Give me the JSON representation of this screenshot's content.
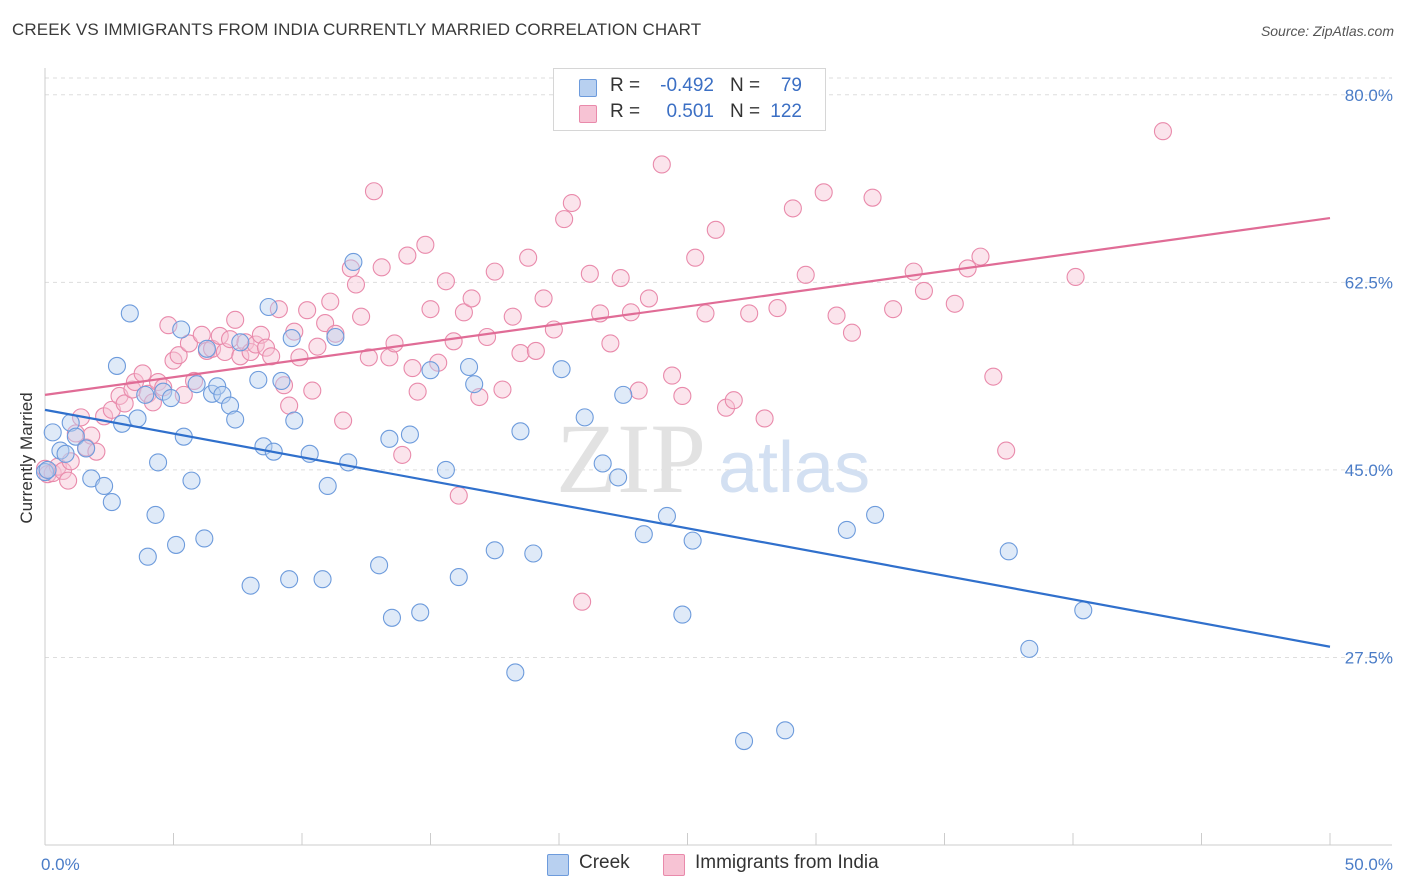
{
  "title": "CREEK VS IMMIGRANTS FROM INDIA CURRENTLY MARRIED CORRELATION CHART",
  "source": "Source: ZipAtlas.com",
  "watermark": {
    "zip": "ZIP",
    "atlas": "atlas"
  },
  "legend": {
    "series": [
      {
        "r_label": "R =",
        "r_value": "-0.492",
        "n_label": "N =",
        "n_value": "79"
      },
      {
        "r_label": "R =",
        "r_value": "0.501",
        "n_label": "N =",
        "n_value": "122"
      }
    ]
  },
  "colors": {
    "creek_fill": "#b8d0f0",
    "creek_stroke": "#6d9bdc",
    "creek_line": "#3070cc",
    "india_fill": "#f7c3d4",
    "india_stroke": "#e98aab",
    "india_line": "#e06c96",
    "tick": "#4a7cc7",
    "grid": "#dddddd"
  },
  "chart_data": {
    "type": "scatter",
    "title": "CREEK VS IMMIGRANTS FROM INDIA CURRENTLY MARRIED CORRELATION CHART",
    "xlabel": "",
    "ylabel": "Currently Married",
    "xlim": [
      0,
      50
    ],
    "ylim": [
      10,
      82.5
    ],
    "x_tick_labels": [
      "0.0%",
      "50.0%"
    ],
    "y_ticks": [
      27.5,
      45.0,
      62.5,
      80.0
    ],
    "y_tick_labels": [
      "27.5%",
      "45.0%",
      "62.5%",
      "80.0%"
    ],
    "grid": "horizontal dashed",
    "legend_position": "top-center",
    "series": [
      {
        "name": "Creek",
        "r": -0.492,
        "n": 79,
        "trend": {
          "x": [
            0,
            50
          ],
          "y": [
            50.6,
            28.5
          ]
        },
        "points": [
          [
            0.0,
            44.8
          ],
          [
            0.3,
            48.5
          ],
          [
            0.6,
            46.8
          ],
          [
            0.8,
            46.5
          ],
          [
            1.0,
            49.4
          ],
          [
            1.2,
            48.1
          ],
          [
            1.6,
            47.0
          ],
          [
            1.8,
            44.2
          ],
          [
            2.3,
            43.5
          ],
          [
            2.6,
            42.0
          ],
          [
            2.8,
            54.7
          ],
          [
            3.0,
            49.3
          ],
          [
            3.3,
            59.6
          ],
          [
            3.6,
            49.8
          ],
          [
            3.9,
            52.0
          ],
          [
            4.0,
            36.9
          ],
          [
            4.3,
            40.8
          ],
          [
            4.4,
            45.7
          ],
          [
            4.6,
            52.3
          ],
          [
            4.9,
            51.7
          ],
          [
            5.1,
            38.0
          ],
          [
            5.3,
            58.1
          ],
          [
            5.4,
            48.1
          ],
          [
            5.7,
            44.0
          ],
          [
            5.9,
            53.0
          ],
          [
            6.2,
            38.6
          ],
          [
            6.3,
            56.3
          ],
          [
            6.5,
            52.1
          ],
          [
            6.7,
            52.8
          ],
          [
            6.9,
            52.0
          ],
          [
            7.2,
            51.0
          ],
          [
            7.4,
            49.7
          ],
          [
            7.6,
            56.9
          ],
          [
            8.0,
            34.2
          ],
          [
            8.3,
            53.4
          ],
          [
            8.5,
            47.2
          ],
          [
            8.7,
            60.2
          ],
          [
            8.9,
            46.7
          ],
          [
            9.2,
            53.3
          ],
          [
            9.5,
            34.8
          ],
          [
            9.6,
            57.3
          ],
          [
            9.7,
            49.6
          ],
          [
            10.3,
            46.5
          ],
          [
            10.8,
            34.8
          ],
          [
            11.0,
            43.5
          ],
          [
            11.3,
            57.4
          ],
          [
            11.8,
            45.7
          ],
          [
            12.0,
            64.4
          ],
          [
            13.0,
            36.1
          ],
          [
            13.4,
            47.9
          ],
          [
            13.5,
            31.2
          ],
          [
            14.2,
            48.3
          ],
          [
            14.6,
            31.7
          ],
          [
            15.0,
            54.3
          ],
          [
            15.6,
            45.0
          ],
          [
            16.1,
            35.0
          ],
          [
            16.5,
            54.6
          ],
          [
            16.7,
            53.0
          ],
          [
            17.5,
            37.5
          ],
          [
            18.3,
            26.1
          ],
          [
            18.5,
            48.6
          ],
          [
            19.0,
            37.2
          ],
          [
            20.1,
            54.4
          ],
          [
            21.0,
            49.9
          ],
          [
            21.7,
            45.6
          ],
          [
            22.3,
            44.3
          ],
          [
            22.5,
            52.0
          ],
          [
            23.3,
            39.0
          ],
          [
            24.2,
            40.7
          ],
          [
            24.8,
            31.5
          ],
          [
            25.2,
            38.4
          ],
          [
            27.2,
            19.7
          ],
          [
            28.8,
            20.7
          ],
          [
            31.2,
            39.4
          ],
          [
            32.3,
            40.8
          ],
          [
            37.5,
            37.4
          ],
          [
            38.3,
            28.3
          ],
          [
            40.4,
            31.9
          ],
          [
            0.1,
            45.0
          ]
        ]
      },
      {
        "name": "Immigrants from India",
        "r": 0.501,
        "n": 122,
        "trend": {
          "x": [
            0,
            50
          ],
          "y": [
            52.0,
            68.5
          ]
        },
        "points": [
          [
            0.0,
            45.1
          ],
          [
            0.1,
            44.6
          ],
          [
            0.3,
            44.7
          ],
          [
            0.5,
            45.3
          ],
          [
            0.7,
            44.9
          ],
          [
            0.9,
            44.0
          ],
          [
            1.0,
            45.8
          ],
          [
            1.2,
            48.4
          ],
          [
            1.4,
            49.9
          ],
          [
            1.6,
            47.1
          ],
          [
            1.8,
            48.2
          ],
          [
            2.0,
            46.7
          ],
          [
            2.3,
            50.0
          ],
          [
            2.6,
            50.6
          ],
          [
            2.9,
            51.9
          ],
          [
            3.1,
            51.2
          ],
          [
            3.4,
            52.5
          ],
          [
            3.5,
            53.2
          ],
          [
            3.8,
            54.0
          ],
          [
            4.0,
            52.1
          ],
          [
            4.2,
            51.3
          ],
          [
            4.4,
            53.2
          ],
          [
            4.6,
            52.7
          ],
          [
            4.8,
            58.5
          ],
          [
            5.0,
            55.2
          ],
          [
            5.2,
            55.7
          ],
          [
            5.4,
            52.0
          ],
          [
            5.6,
            56.8
          ],
          [
            5.8,
            53.3
          ],
          [
            6.1,
            57.6
          ],
          [
            6.3,
            56.1
          ],
          [
            6.5,
            56.3
          ],
          [
            6.8,
            57.5
          ],
          [
            7.0,
            56.0
          ],
          [
            7.2,
            57.2
          ],
          [
            7.4,
            59.0
          ],
          [
            7.6,
            55.6
          ],
          [
            7.8,
            56.9
          ],
          [
            8.0,
            56.0
          ],
          [
            8.2,
            56.7
          ],
          [
            8.4,
            57.6
          ],
          [
            8.6,
            56.4
          ],
          [
            8.8,
            55.6
          ],
          [
            9.1,
            60.0
          ],
          [
            9.3,
            52.9
          ],
          [
            9.5,
            51.0
          ],
          [
            9.7,
            57.9
          ],
          [
            9.9,
            55.5
          ],
          [
            10.2,
            59.9
          ],
          [
            10.4,
            52.4
          ],
          [
            10.6,
            56.5
          ],
          [
            10.9,
            58.7
          ],
          [
            11.1,
            60.7
          ],
          [
            11.3,
            57.7
          ],
          [
            11.6,
            49.6
          ],
          [
            11.9,
            63.8
          ],
          [
            12.1,
            62.3
          ],
          [
            12.3,
            59.3
          ],
          [
            12.6,
            55.5
          ],
          [
            12.8,
            71.0
          ],
          [
            13.1,
            63.9
          ],
          [
            13.4,
            55.5
          ],
          [
            13.6,
            56.8
          ],
          [
            13.9,
            46.4
          ],
          [
            14.1,
            65.0
          ],
          [
            14.3,
            54.5
          ],
          [
            14.5,
            52.3
          ],
          [
            14.8,
            66.0
          ],
          [
            15.0,
            60.0
          ],
          [
            15.3,
            55.0
          ],
          [
            15.6,
            62.6
          ],
          [
            15.9,
            57.0
          ],
          [
            16.1,
            42.6
          ],
          [
            16.3,
            59.7
          ],
          [
            16.6,
            61.0
          ],
          [
            16.9,
            51.8
          ],
          [
            17.2,
            57.4
          ],
          [
            17.5,
            63.5
          ],
          [
            17.8,
            52.5
          ],
          [
            18.2,
            59.3
          ],
          [
            18.5,
            55.9
          ],
          [
            18.8,
            64.8
          ],
          [
            19.1,
            56.1
          ],
          [
            19.4,
            61.0
          ],
          [
            19.8,
            58.1
          ],
          [
            20.2,
            68.4
          ],
          [
            20.5,
            69.9
          ],
          [
            20.9,
            32.7
          ],
          [
            21.2,
            63.3
          ],
          [
            21.6,
            59.6
          ],
          [
            22.0,
            56.8
          ],
          [
            22.4,
            62.9
          ],
          [
            22.8,
            59.7
          ],
          [
            23.1,
            52.4
          ],
          [
            23.5,
            61.0
          ],
          [
            24.0,
            73.5
          ],
          [
            24.4,
            53.8
          ],
          [
            24.8,
            51.9
          ],
          [
            25.3,
            64.8
          ],
          [
            25.7,
            59.6
          ],
          [
            26.1,
            67.4
          ],
          [
            26.5,
            50.8
          ],
          [
            26.8,
            51.5
          ],
          [
            27.4,
            59.6
          ],
          [
            28.0,
            49.8
          ],
          [
            28.5,
            60.1
          ],
          [
            29.1,
            69.4
          ],
          [
            29.6,
            63.2
          ],
          [
            30.3,
            70.9
          ],
          [
            30.8,
            59.4
          ],
          [
            31.4,
            57.8
          ],
          [
            32.2,
            70.4
          ],
          [
            33.0,
            60.0
          ],
          [
            33.8,
            63.5
          ],
          [
            34.2,
            61.7
          ],
          [
            35.4,
            60.5
          ],
          [
            35.9,
            63.8
          ],
          [
            36.4,
            64.9
          ],
          [
            36.9,
            53.7
          ],
          [
            37.4,
            46.8
          ],
          [
            40.1,
            63.0
          ],
          [
            43.5,
            76.6
          ]
        ]
      }
    ]
  },
  "bottom_legend": {
    "creek": "Creek",
    "india": "Immigrants from India"
  }
}
